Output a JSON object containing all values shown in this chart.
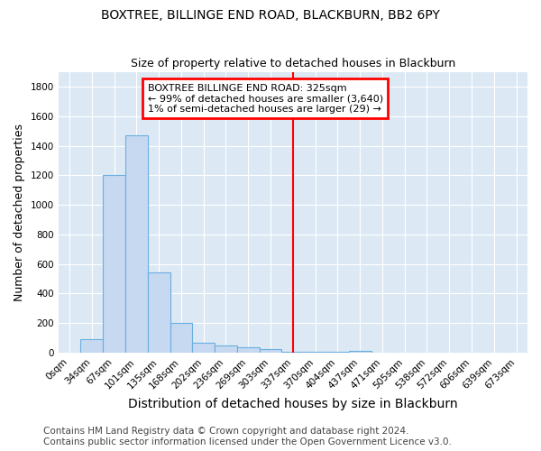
{
  "title": "BOXTREE, BILLINGE END ROAD, BLACKBURN, BB2 6PY",
  "subtitle": "Size of property relative to detached houses in Blackburn",
  "xlabel": "Distribution of detached houses by size in Blackburn",
  "ylabel": "Number of detached properties",
  "footnote1": "Contains HM Land Registry data © Crown copyright and database right 2024.",
  "footnote2": "Contains public sector information licensed under the Open Government Licence v3.0.",
  "bar_labels": [
    "0sqm",
    "34sqm",
    "67sqm",
    "101sqm",
    "135sqm",
    "168sqm",
    "202sqm",
    "236sqm",
    "269sqm",
    "303sqm",
    "337sqm",
    "370sqm",
    "404sqm",
    "437sqm",
    "471sqm",
    "505sqm",
    "538sqm",
    "572sqm",
    "606sqm",
    "639sqm",
    "673sqm"
  ],
  "bar_values": [
    0,
    90,
    1200,
    1470,
    540,
    200,
    65,
    50,
    35,
    25,
    5,
    8,
    5,
    13,
    0,
    0,
    0,
    0,
    0,
    0,
    0
  ],
  "bar_color": "#c6d9f0",
  "bar_edge_color": "#6aaee0",
  "ylim": [
    0,
    1900
  ],
  "yticks": [
    0,
    200,
    400,
    600,
    800,
    1000,
    1200,
    1400,
    1600,
    1800
  ],
  "annotation_text_line1": "BOXTREE BILLINGE END ROAD: 325sqm",
  "annotation_text_line2": "← 99% of detached houses are smaller (3,640)",
  "annotation_text_line3": "1% of semi-detached houses are larger (29) →",
  "fig_bg_color": "#ffffff",
  "ax_bg_color": "#dce9f5",
  "grid_color": "#ffffff",
  "title_fontsize": 10,
  "xlabel_fontsize": 10,
  "ylabel_fontsize": 9,
  "tick_fontsize": 7.5,
  "annotation_fontsize": 8,
  "footnote_fontsize": 7.5
}
